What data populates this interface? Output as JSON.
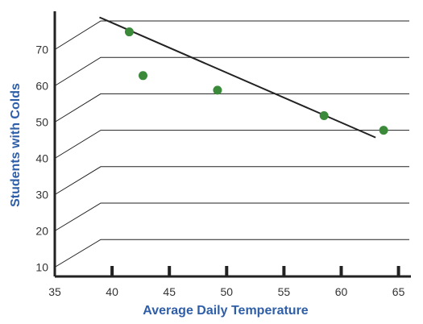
{
  "chart_data": {
    "type": "scatter",
    "title": "",
    "xlabel": "Average Daily Temperature",
    "ylabel": "Students with Colds",
    "xlim": [
      35,
      65
    ],
    "ylim": [
      10,
      70
    ],
    "x_ticks": [
      "35",
      "40",
      "45",
      "50",
      "55",
      "60",
      "65"
    ],
    "y_ticks": [
      "10",
      "20",
      "30",
      "40",
      "50",
      "60",
      "70"
    ],
    "series": [
      {
        "points": [
          {
            "x": 41.5,
            "y": 67
          },
          {
            "x": 42.7,
            "y": 55
          },
          {
            "x": 49.2,
            "y": 51
          },
          {
            "x": 58.5,
            "y": 44
          },
          {
            "x": 63.7,
            "y": 40
          }
        ]
      }
    ],
    "trend_line": {
      "x1": 38.9,
      "y1": 71,
      "x2": 63.0,
      "y2": 38
    },
    "grid": true,
    "colors": {
      "points": "#3a8a3a",
      "axis_title": "#2e5ea8",
      "line": "#222222",
      "grid": "#222222"
    }
  }
}
